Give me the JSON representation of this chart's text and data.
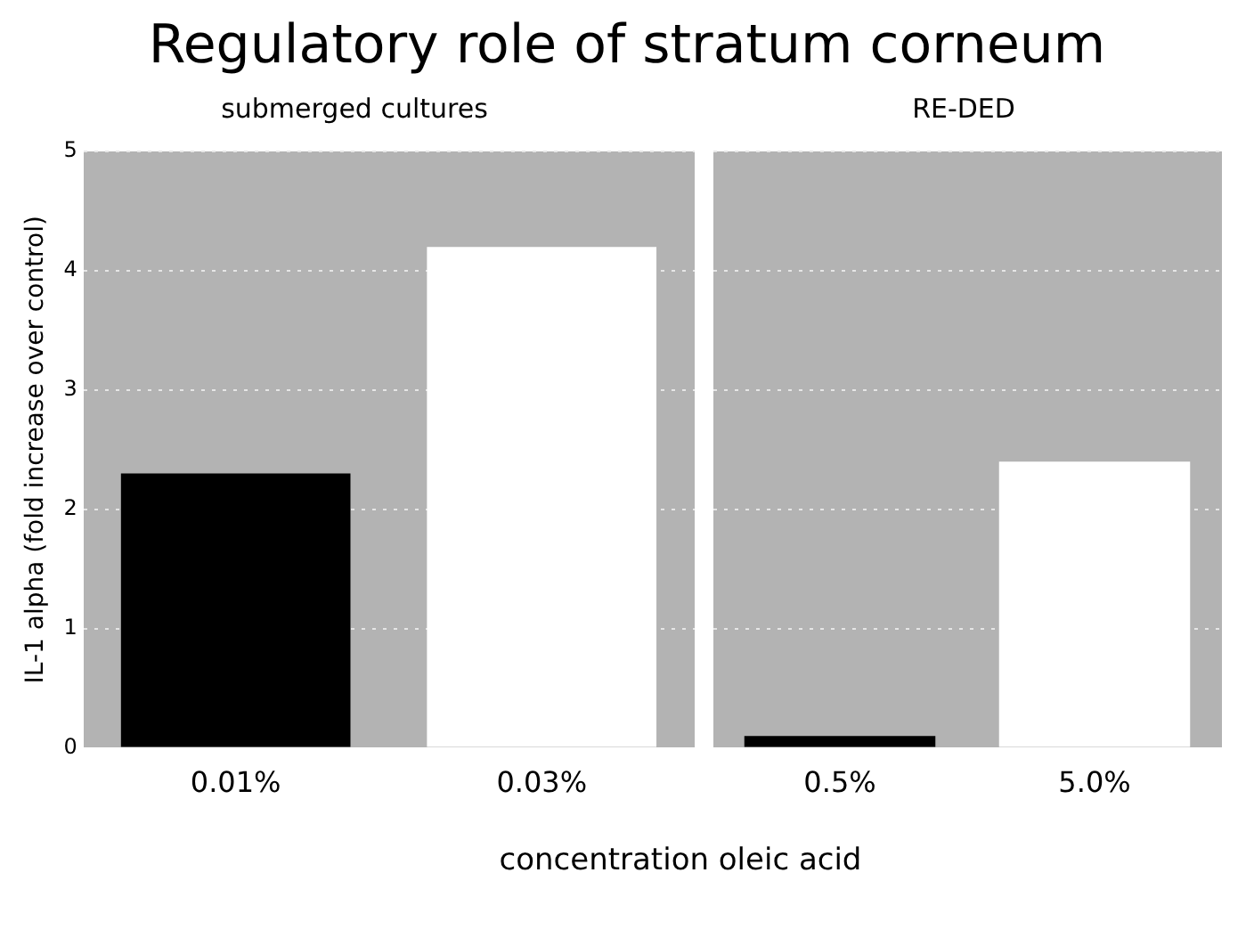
{
  "chart_data": [
    {
      "type": "bar",
      "title": "Regulatory role of stratum corneum",
      "subtitle": "submerged cultures",
      "xlabel": "concentration oleic acid",
      "ylabel": "IL-1 alpha (fold increase over control)",
      "categories": [
        "0.01%",
        "0.03%"
      ],
      "values": [
        2.3,
        4.2
      ],
      "colors": [
        "#000000",
        "#ffffff"
      ],
      "ylim": [
        0,
        5
      ],
      "yticks": [
        0,
        1,
        2,
        3,
        4,
        5
      ],
      "grid": "y"
    },
    {
      "type": "bar",
      "subtitle": "RE-DED",
      "categories": [
        "0.5%",
        "5.0%"
      ],
      "values": [
        0.1,
        2.4
      ],
      "colors": [
        "#000000",
        "#ffffff"
      ],
      "ylim": [
        0,
        5
      ],
      "yticks": [
        0,
        1,
        2,
        3,
        4,
        5
      ],
      "grid": "y",
      "tick_labels": "x"
    }
  ]
}
